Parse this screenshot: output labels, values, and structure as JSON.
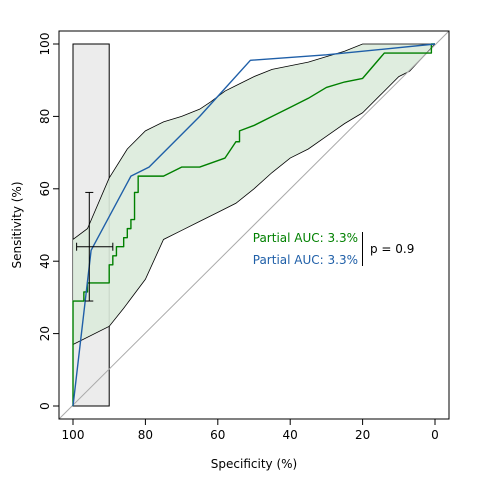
{
  "chart_data": {
    "type": "line",
    "title": "",
    "xlabel": "Specificity (%)",
    "ylabel": "Sensitivity (%)",
    "xlim": [
      100,
      0
    ],
    "ylim": [
      0,
      100
    ],
    "x_reversed": true,
    "grid": false,
    "x_ticks": [
      "100",
      "80",
      "60",
      "40",
      "20",
      "0"
    ],
    "y_ticks": [
      "0",
      "20",
      "40",
      "60",
      "80",
      "100"
    ],
    "partial_region": {
      "specificity_range": [
        90,
        100
      ],
      "color": "#ececec"
    },
    "confidence_band": {
      "color": "#dcebdc",
      "upper": [
        [
          100,
          46
        ],
        [
          96,
          49
        ],
        [
          90,
          63
        ],
        [
          85,
          71
        ],
        [
          80,
          76
        ],
        [
          75,
          78.5
        ],
        [
          70,
          80
        ],
        [
          65,
          82
        ],
        [
          62,
          84
        ],
        [
          58,
          87
        ],
        [
          55,
          88.5
        ],
        [
          50,
          91
        ],
        [
          45,
          93
        ],
        [
          40,
          94
        ],
        [
          35,
          95
        ],
        [
          30,
          96.5
        ],
        [
          25,
          98
        ],
        [
          20,
          100
        ],
        [
          0,
          100
        ]
      ],
      "lower": [
        [
          100,
          17
        ],
        [
          90,
          22
        ],
        [
          86,
          27
        ],
        [
          80,
          35
        ],
        [
          75,
          46
        ],
        [
          70,
          48.5
        ],
        [
          65,
          51
        ],
        [
          60,
          53.5
        ],
        [
          55,
          56
        ],
        [
          50,
          60
        ],
        [
          45,
          64.5
        ],
        [
          40,
          68.5
        ],
        [
          35,
          71
        ],
        [
          30,
          74.5
        ],
        [
          25,
          78
        ],
        [
          20,
          81
        ],
        [
          15,
          86
        ],
        [
          10,
          91
        ],
        [
          7,
          92.5
        ],
        [
          0,
          100
        ]
      ]
    },
    "series": [
      {
        "name": "",
        "color": "#008000",
        "points": [
          [
            100,
            0
          ],
          [
            100,
            29
          ],
          [
            97,
            29
          ],
          [
            97,
            31.5
          ],
          [
            96,
            31.5
          ],
          [
            96,
            34
          ],
          [
            90,
            34
          ],
          [
            90,
            39
          ],
          [
            89,
            39
          ],
          [
            89,
            41.5
          ],
          [
            88,
            41.5
          ],
          [
            88,
            44
          ],
          [
            86,
            44
          ],
          [
            86,
            46.5
          ],
          [
            85,
            46.5
          ],
          [
            85,
            49
          ],
          [
            84,
            49
          ],
          [
            84,
            51.5
          ],
          [
            83,
            51.5
          ],
          [
            83,
            59
          ],
          [
            82,
            59
          ],
          [
            82,
            63.5
          ],
          [
            76,
            63.5
          ],
          [
            76,
            63.5
          ],
          [
            75,
            63.5
          ],
          [
            70,
            66
          ],
          [
            65,
            66
          ],
          [
            58,
            68.5
          ],
          [
            55,
            73
          ],
          [
            54,
            73
          ],
          [
            54,
            76
          ],
          [
            50,
            77.5
          ],
          [
            45,
            80
          ],
          [
            40,
            82.5
          ],
          [
            35,
            85
          ],
          [
            30,
            88
          ],
          [
            25,
            89.5
          ],
          [
            20,
            90.5
          ],
          [
            14,
            97.5
          ],
          [
            1,
            97.5
          ],
          [
            1,
            100
          ],
          [
            0,
            100
          ]
        ]
      },
      {
        "name": "",
        "color": "#1f5fa8",
        "points": [
          [
            100,
            0
          ],
          [
            95,
            43
          ],
          [
            84,
            63.5
          ],
          [
            79,
            66
          ],
          [
            68,
            77
          ],
          [
            65,
            80
          ],
          [
            51,
            95.5
          ],
          [
            30,
            97
          ],
          [
            0,
            100
          ]
        ]
      }
    ],
    "diagonal": {
      "from": [
        100,
        0
      ],
      "to": [
        0,
        100
      ],
      "color": "#aaaaaa"
    },
    "ci_cross": {
      "center": [
        95.5,
        44
      ],
      "specificity_ci": [
        99,
        89
      ],
      "sensitivity_ci": [
        29,
        59
      ],
      "color": "#000000"
    },
    "annotations": [
      {
        "text": "Partial AUC: 3.3%",
        "color": "#008000"
      },
      {
        "text": "Partial AUC: 3.3%",
        "color": "#1f5fa8"
      },
      {
        "text": "p = 0.9",
        "color": "#000000"
      }
    ]
  }
}
